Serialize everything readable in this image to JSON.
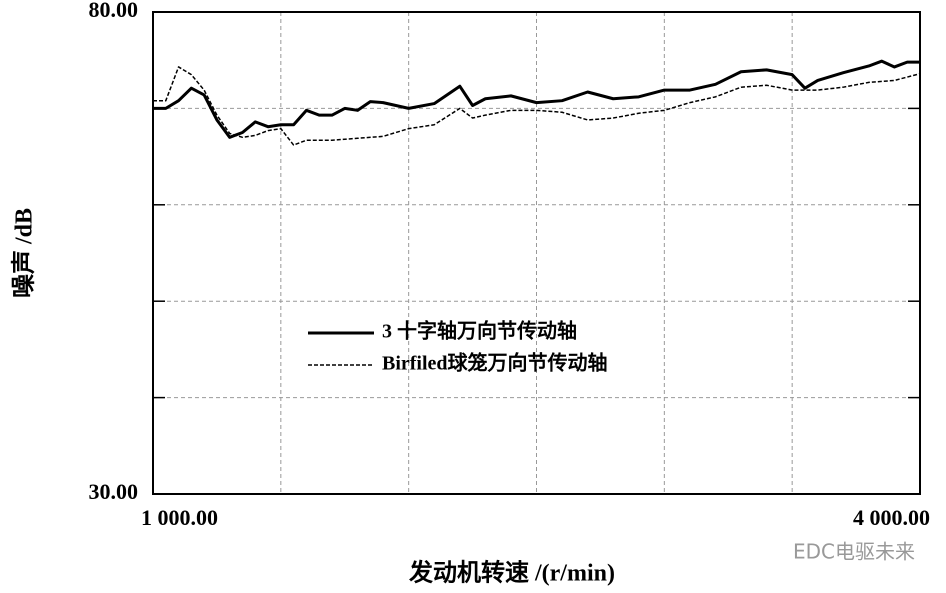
{
  "chart_data": {
    "type": "line",
    "xlabel": "发动机转速 /(r/min)",
    "ylabel": "噪声 /dB",
    "xlim": [
      1000,
      4000
    ],
    "ylim": [
      30,
      80
    ],
    "xticks": [
      {
        "value": 1000,
        "label": "1 000.00"
      },
      {
        "value": 4000,
        "label": "4 000.00"
      }
    ],
    "yticks": [
      {
        "value": 30,
        "label": "30.00"
      },
      {
        "value": 80,
        "label": "80.00"
      }
    ],
    "xgrid": [
      1500,
      2000,
      2500,
      3000,
      3500
    ],
    "ygrid": [
      40,
      50,
      60,
      70
    ],
    "grid": true,
    "legend": "center",
    "series": [
      {
        "name": "3 十字轴万向节传动轴",
        "color": "#000000",
        "style": "solid",
        "x": [
          1000,
          1050,
          1100,
          1150,
          1200,
          1250,
          1300,
          1350,
          1400,
          1450,
          1500,
          1550,
          1600,
          1650,
          1700,
          1750,
          1800,
          1850,
          1900,
          1950,
          2000,
          2100,
          2200,
          2250,
          2300,
          2400,
          2500,
          2600,
          2700,
          2800,
          2900,
          3000,
          3100,
          3200,
          3300,
          3400,
          3500,
          3550,
          3600,
          3700,
          3800,
          3850,
          3900,
          3950,
          4000
        ],
        "values": [
          70,
          70,
          70.8,
          72.1,
          71.4,
          68.8,
          67,
          67.5,
          68.6,
          68.1,
          68.3,
          68.3,
          69.8,
          69.3,
          69.3,
          70,
          69.8,
          70.7,
          70.6,
          70.3,
          70,
          70.5,
          72.3,
          70.3,
          71,
          71.3,
          70.6,
          70.8,
          71.7,
          71,
          71.2,
          71.9,
          71.9,
          72.5,
          73.8,
          74,
          73.5,
          72.1,
          72.9,
          73.7,
          74.4,
          74.9,
          74.3,
          74.8,
          74.8
        ]
      },
      {
        "name": "Birfiled球笼万向节传动轴",
        "color": "#000000",
        "style": "dashed",
        "x": [
          1000,
          1050,
          1100,
          1150,
          1200,
          1250,
          1300,
          1350,
          1400,
          1450,
          1500,
          1550,
          1600,
          1700,
          1800,
          1900,
          2000,
          2100,
          2200,
          2250,
          2300,
          2400,
          2500,
          2600,
          2700,
          2800,
          2900,
          3000,
          3100,
          3200,
          3300,
          3400,
          3500,
          3600,
          3700,
          3800,
          3900,
          4000
        ],
        "values": [
          70.8,
          70.8,
          74.3,
          73.5,
          71.9,
          69.3,
          67.4,
          67,
          67.2,
          67.7,
          67.9,
          66.2,
          66.7,
          66.7,
          66.9,
          67.1,
          67.9,
          68.3,
          70,
          69,
          69.3,
          69.8,
          69.8,
          69.6,
          68.8,
          69,
          69.5,
          69.8,
          70.6,
          71.2,
          72.2,
          72.4,
          71.9,
          71.9,
          72.2,
          72.7,
          72.9,
          73.6
        ]
      }
    ],
    "watermark": "EDC电驱未来"
  }
}
